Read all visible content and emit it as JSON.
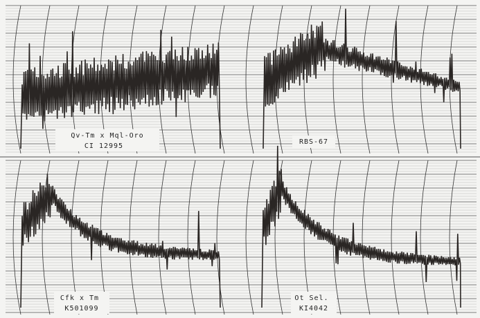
{
  "panels": [
    {
      "lines": [
        "Qv-Tm x Mql-Oro",
        "CI 12995"
      ]
    },
    {
      "lines": [
        "RBS-67"
      ]
    },
    {
      "lines": [
        "Cfk x Tm",
        "K501099"
      ]
    },
    {
      "lines": [
        "Ot Sel.",
        "KI4042"
      ]
    }
  ]
}
